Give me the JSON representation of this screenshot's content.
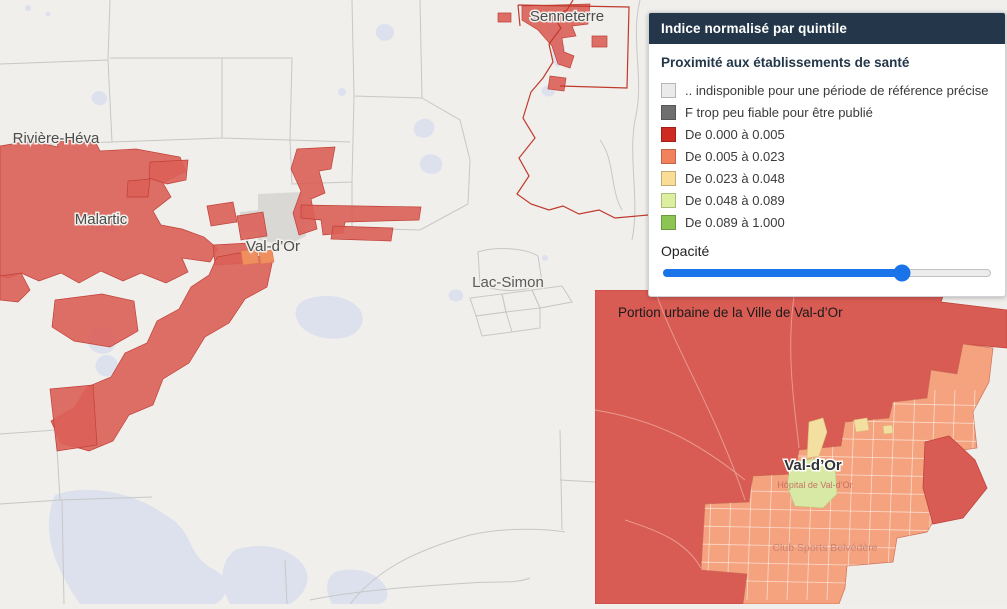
{
  "legend": {
    "header": "Indice normalisé par quintile",
    "header_bg": "#24374a",
    "section_title": "Proximité aux établissements de santé",
    "items": [
      {
        "label": ".. indisponible pour une période de référence précise",
        "color": "#eaeaea"
      },
      {
        "label": "F trop peu fiable pour être publié",
        "color": "#6f6f6f"
      },
      {
        "label": "De 0.000 à 0.005",
        "color": "#cd2a21"
      },
      {
        "label": "De 0.005 à 0.023",
        "color": "#f1825d"
      },
      {
        "label": "De 0.023 à 0.048",
        "color": "#f9dd96"
      },
      {
        "label": "De 0.048 à 0.089",
        "color": "#dcefa1"
      },
      {
        "label": "De 0.089 à 1.000",
        "color": "#8cc554"
      }
    ],
    "opacity_label": "Opacité",
    "opacity_percent": 73,
    "slider_color": "#1a73e8"
  },
  "map_labels": {
    "senneterre": "Senneterre",
    "riviere_heva": "Rivière-Héva",
    "malartic": "Malartic",
    "val_dor": "Val-d’Or",
    "lac_simon": "Lac-Simon"
  },
  "inset": {
    "title": "Portion urbaine de la Ville de Val-d’Or",
    "city_label": "Val-d’Or",
    "hospital_label": "Hôpital de Val-d’Or",
    "poi_label": "Club Sports Belvédère"
  },
  "colors": {
    "map_background": "#f0efec",
    "water": "#dce1ed",
    "boundary_line": "#c7c7c7",
    "overlay_red": "#da5f58",
    "overlay_red_stroke": "#c14036",
    "overlay_orange": "#ef8e5f",
    "mrc_boundary_red": "#c0392b",
    "inset_salmon": "#f4a37e",
    "inset_yellow": "#f3e0a0",
    "inset_green": "#d8e9a6"
  }
}
